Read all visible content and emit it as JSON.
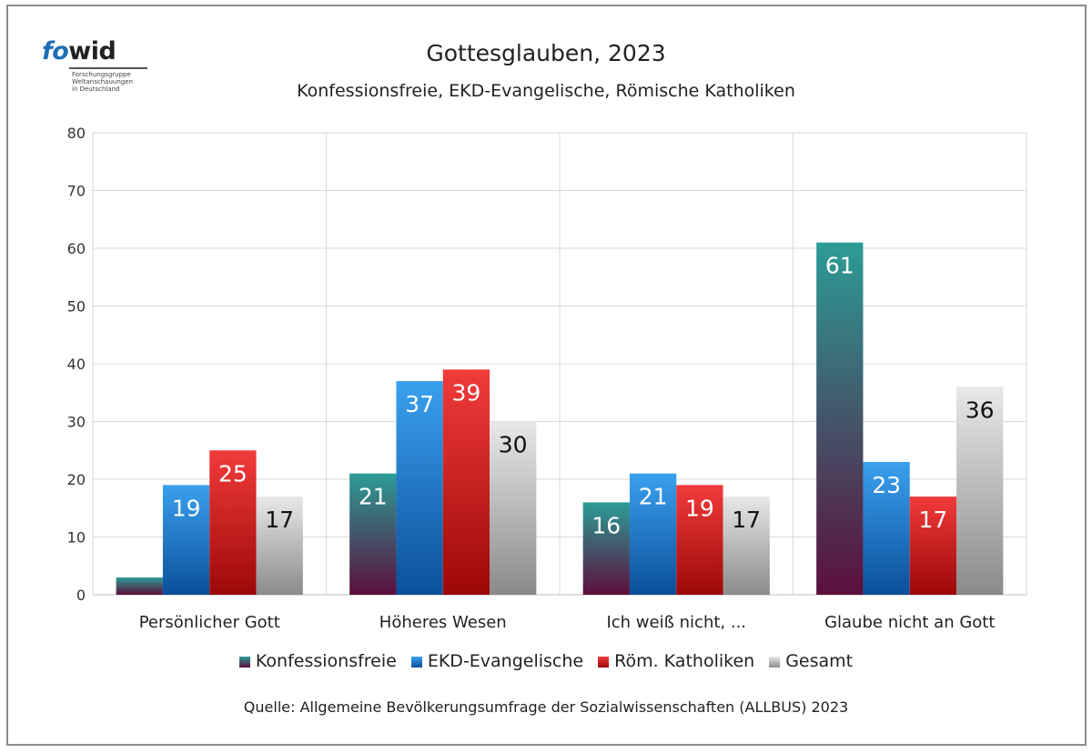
{
  "logo": {
    "word_a": "fo",
    "word_b": "wid",
    "lines": [
      "Forschungsgruppe",
      "Weltanschauungen",
      "in Deutschland"
    ]
  },
  "chart_data": {
    "type": "bar",
    "title": "Gottesglauben, 2023",
    "subtitle": "Konfessionsfreie, EKD-Evangelische, Römische Katholiken",
    "categories": [
      "Persönlicher Gott",
      "Höheres Wesen",
      "Ich weiß nicht, ...",
      "Glaube nicht an Gott"
    ],
    "series": [
      {
        "name": "Konfessionsfreie",
        "values": [
          3,
          21,
          16,
          61
        ],
        "labels": [
          null,
          "21",
          "16",
          "61"
        ],
        "color_top": "#2c9c96",
        "color_bottom": "#5b0f3c"
      },
      {
        "name": "EKD-Evangelische",
        "values": [
          19,
          37,
          21,
          23
        ],
        "labels": [
          "19",
          "37",
          "21",
          "23"
        ],
        "color_top": "#3aa0ee",
        "color_bottom": "#0b4f9a"
      },
      {
        "name": "Röm. Katholiken",
        "values": [
          25,
          39,
          19,
          17
        ],
        "labels": [
          "25",
          "39",
          "19",
          "17"
        ],
        "color_top": "#f23b3b",
        "color_bottom": "#9c0808"
      },
      {
        "name": "Gesamt",
        "values": [
          17,
          30,
          17,
          36
        ],
        "labels": [
          "17",
          "30",
          "17",
          "36"
        ],
        "color_top": "#e8e8e8",
        "color_bottom": "#8a8a8a"
      }
    ],
    "ylim": [
      0,
      80
    ],
    "yticks": [
      0,
      10,
      20,
      30,
      40,
      50,
      60,
      70,
      80
    ],
    "grid": true,
    "legend_position": "bottom",
    "label_colors": {
      "light": "#ffffff",
      "dark": "#111111"
    }
  },
  "source": "Quelle: Allgemeine Bevölkerungsumfrage der Sozialwissenschaften (ALLBUS) 2023"
}
